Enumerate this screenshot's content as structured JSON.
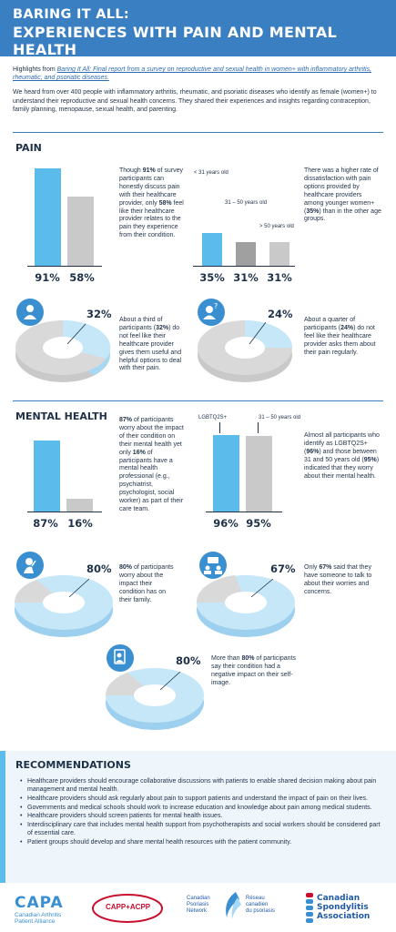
{
  "header": {
    "line1": "BARING IT ALL:",
    "line2": "EXPERIENCES WITH PAIN AND MENTAL HEALTH"
  },
  "intro": {
    "p1_prefix": "Highlights from ",
    "p1_link": "Baring It All: Final report from a survey on reproductive and sexual health in women+ with inflammatory arthritis, rheumatic, and psoriatic diseases.",
    "p2": "We heard from over 400 people with inflammatory arthritis, rheumatic, and psoriatic diseases who identify as female (women+) to understand their reproductive and sexual health concerns. They shared their experiences and insights regarding contraception, family planning, menopause, sexual health, and parenting."
  },
  "pain": {
    "title": "PAIN",
    "chart1": {
      "values": [
        "91%",
        "58%"
      ],
      "text_a": "Though ",
      "bold_a": "91%",
      "text_b": " of survey participants can honestly discuss pain with their healthcare provider, only ",
      "bold_b": "58%",
      "text_c": " feel like their healthcare provider relates to the pain they experience from their condition."
    },
    "chart2": {
      "labels": [
        "< 31 years old",
        "31 – 50 years old",
        "> 50 years old"
      ],
      "values": [
        "35%",
        "31%",
        "31%"
      ],
      "text_a": "There was a higher rate of dissatisfaction with pain options provided by healthcare providers among younger women+ (",
      "bold_a": "35%",
      "text_b": ") than in the other age groups."
    },
    "donut1": {
      "pct": "32%",
      "text_a": "About a third of participants (",
      "bold_a": "32%",
      "text_b": ") do not feel like their healthcare provider gives them useful and helpful options to deal with their pain.",
      "icon": "person-icon"
    },
    "donut2": {
      "pct": "24%",
      "text_a": "About a quarter of participants (",
      "bold_a": "24%",
      "text_b": ") do not feel like their healthcare provider asks them about their pain regularly.",
      "icon": "question-person-icon"
    }
  },
  "mental": {
    "title": "MENTAL HEALTH",
    "chart1": {
      "values": [
        "87%",
        "16%"
      ],
      "bold_a": "87%",
      "text_a": " of participants worry about the impact of their condition on their mental health yet only ",
      "bold_b": "16%",
      "text_b": " of participants have a mental health professional (e.g., psychiatrist, psychologist, social worker) as part of their care team."
    },
    "chart2": {
      "labels": [
        "LGBTQ2S+",
        "31 – 50 years old"
      ],
      "values": [
        "96%",
        "95%"
      ],
      "text_a": "Almost all participants who identify as LGBTQ2S+ (",
      "bold_a": "96%",
      "text_b": ") and those between 31 and 50 years old (",
      "bold_b": "95%",
      "text_c": ") indicated that they worry about their mental health."
    },
    "donut1": {
      "pct": "80%",
      "bold_a": "80%",
      "text_a": " of participants worry about the impact their condition has on their family.",
      "icon": "stressed-person-icon"
    },
    "donut2": {
      "pct": "67%",
      "text_a": "Only ",
      "bold_a": "67%",
      "text_b": " said that they have someone to talk to about their worries and concerns.",
      "icon": "conversation-icon"
    },
    "donut3": {
      "pct": "80%",
      "text_a": "More than ",
      "bold_a": "80%",
      "text_b": " of participants say their condition had a negative impact on their self-image.",
      "icon": "mirror-icon"
    }
  },
  "recommendations": {
    "title": "RECOMMENDATIONS",
    "items": [
      "Healthcare providers should encourage collaborative discussions with patients to enable shared decision making about pain management and mental health.",
      "Healthcare providers should ask regularly about pain to support patients and understand the impact of pain on their lives.",
      "Governments and medical schools should work to increase education and knowledge about pain among medical students.",
      "Healthcare providers should screen patients for mental health issues.",
      "Interdisciplinary care that includes mental health support from psychotherapists and social workers should be considered part of essential care.",
      "Patient groups should develop and share mental health resources with the patient community."
    ]
  },
  "logos": {
    "capa": {
      "name": "CAPA",
      "sub1": "Canadian Arthritis",
      "sub2": "Patient Alliance"
    },
    "capp": {
      "name": "CAPP+ACPP"
    },
    "cpn": {
      "en1": "Canadian",
      "en2": "Psoriasis",
      "en3": "Network",
      "fr1": "Réseau",
      "fr2": "canadien",
      "fr3": "du psoriasis"
    },
    "csa": {
      "l1": "Canadian",
      "l2": "Spondylitis",
      "l3": "Association"
    }
  },
  "colors": {
    "primary": "#3a7fc1",
    "light_blue": "#5bbcec",
    "pale_blue": "#a6d8f3",
    "grey": "#c9c9c9",
    "dark_text": "#1f3148"
  }
}
